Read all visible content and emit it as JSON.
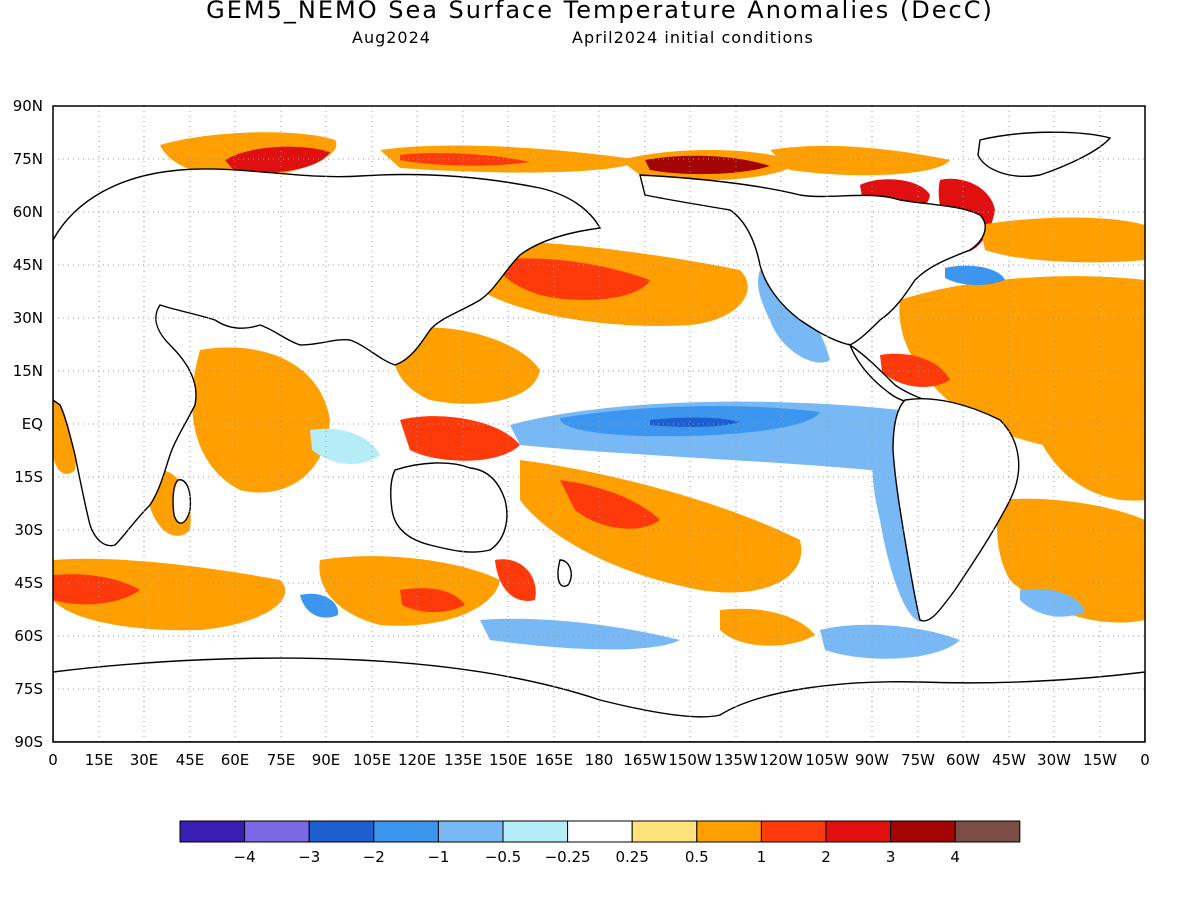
{
  "title": "GEM5_NEMO Sea Surface Temperature Anomalies (DecC)",
  "subtitle_left": "Aug2024",
  "subtitle_right": "April2024 initial conditions",
  "map": {
    "projection": "cylindrical equidistant",
    "lon_range": [
      0,
      360
    ],
    "lat_range": [
      -90,
      90
    ],
    "grid": true,
    "lat_labels": [
      "90N",
      "75N",
      "60N",
      "45N",
      "30N",
      "15N",
      "EQ",
      "15S",
      "30S",
      "45S",
      "60S",
      "75S",
      "90S"
    ],
    "lon_labels": [
      "0",
      "15E",
      "30E",
      "45E",
      "60E",
      "75E",
      "90E",
      "105E",
      "120E",
      "135E",
      "150E",
      "165E",
      "180",
      "165W",
      "150W",
      "135W",
      "120W",
      "105W",
      "90W",
      "75W",
      "60W",
      "45W",
      "30W",
      "15W",
      "0"
    ]
  },
  "colorbar": {
    "colors": [
      "#3a1fb4",
      "#7b68e6",
      "#1e5fcf",
      "#3c96f0",
      "#78b9f5",
      "#b4ecf8",
      "#ffffff",
      "#fee27c",
      "#ffa000",
      "#ff3a0a",
      "#e01010",
      "#a50404",
      "#7b4d43"
    ],
    "labels": [
      "−4",
      "−3",
      "−2",
      "−1",
      "−0.5",
      "−0.25",
      "0.25",
      "0.5",
      "1",
      "2",
      "3",
      "4"
    ]
  }
}
